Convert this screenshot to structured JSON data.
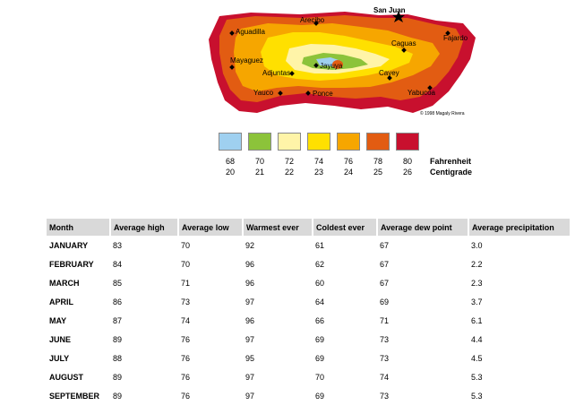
{
  "map": {
    "cities": [
      {
        "name": "San Juan",
        "class": "capital"
      },
      {
        "name": "Arecibo"
      },
      {
        "name": "Aguadilla"
      },
      {
        "name": "Fajardo"
      },
      {
        "name": "Caguas"
      },
      {
        "name": "Mayaguez"
      },
      {
        "name": "Jayuya"
      },
      {
        "name": "Adjuntas"
      },
      {
        "name": "Cayey"
      },
      {
        "name": "Yauco"
      },
      {
        "name": "Ponce"
      },
      {
        "name": "Yabucoa"
      }
    ],
    "copyright": "© 1998 Magaly Rivera",
    "colors": {
      "t68": "#9fd0f0",
      "t70": "#8cc33a",
      "t72": "#fff4a8",
      "t74": "#ffe000",
      "t76": "#f6a600",
      "t78": "#e25c12",
      "t80": "#c8102e"
    }
  },
  "legend": {
    "fahrenheit_label": "Fahrenheit",
    "centigrade_label": "Centigrade",
    "items": [
      {
        "f": "68",
        "c": "20",
        "color": "#9fd0f0"
      },
      {
        "f": "70",
        "c": "21",
        "color": "#8cc33a"
      },
      {
        "f": "72",
        "c": "22",
        "color": "#fff4a8"
      },
      {
        "f": "74",
        "c": "23",
        "color": "#ffe000"
      },
      {
        "f": "76",
        "c": "24",
        "color": "#f6a600"
      },
      {
        "f": "78",
        "c": "25",
        "color": "#e25c12"
      },
      {
        "f": "80",
        "c": "26",
        "color": "#c8102e"
      }
    ]
  },
  "table": {
    "headers": [
      "Month",
      "Average high",
      "Average low",
      "Warmest ever",
      "Coldest ever",
      "Average dew point",
      "Average precipitation"
    ],
    "rows": [
      [
        "JANUARY",
        "83",
        "70",
        "92",
        "61",
        "67",
        "3.0"
      ],
      [
        "FEBRUARY",
        "84",
        "70",
        "96",
        "62",
        "67",
        "2.2"
      ],
      [
        "MARCH",
        "85",
        "71",
        "96",
        "60",
        "67",
        "2.3"
      ],
      [
        "APRIL",
        "86",
        "73",
        "97",
        "64",
        "69",
        "3.7"
      ],
      [
        "MAY",
        "87",
        "74",
        "96",
        "66",
        "71",
        "6.1"
      ],
      [
        "JUNE",
        "89",
        "76",
        "97",
        "69",
        "73",
        "4.4"
      ],
      [
        "JULY",
        "88",
        "76",
        "95",
        "69",
        "73",
        "4.5"
      ],
      [
        "AUGUST",
        "89",
        "76",
        "97",
        "70",
        "74",
        "5.3"
      ],
      [
        "SEPTEMBER",
        "89",
        "76",
        "97",
        "69",
        "73",
        "5.3"
      ]
    ]
  }
}
